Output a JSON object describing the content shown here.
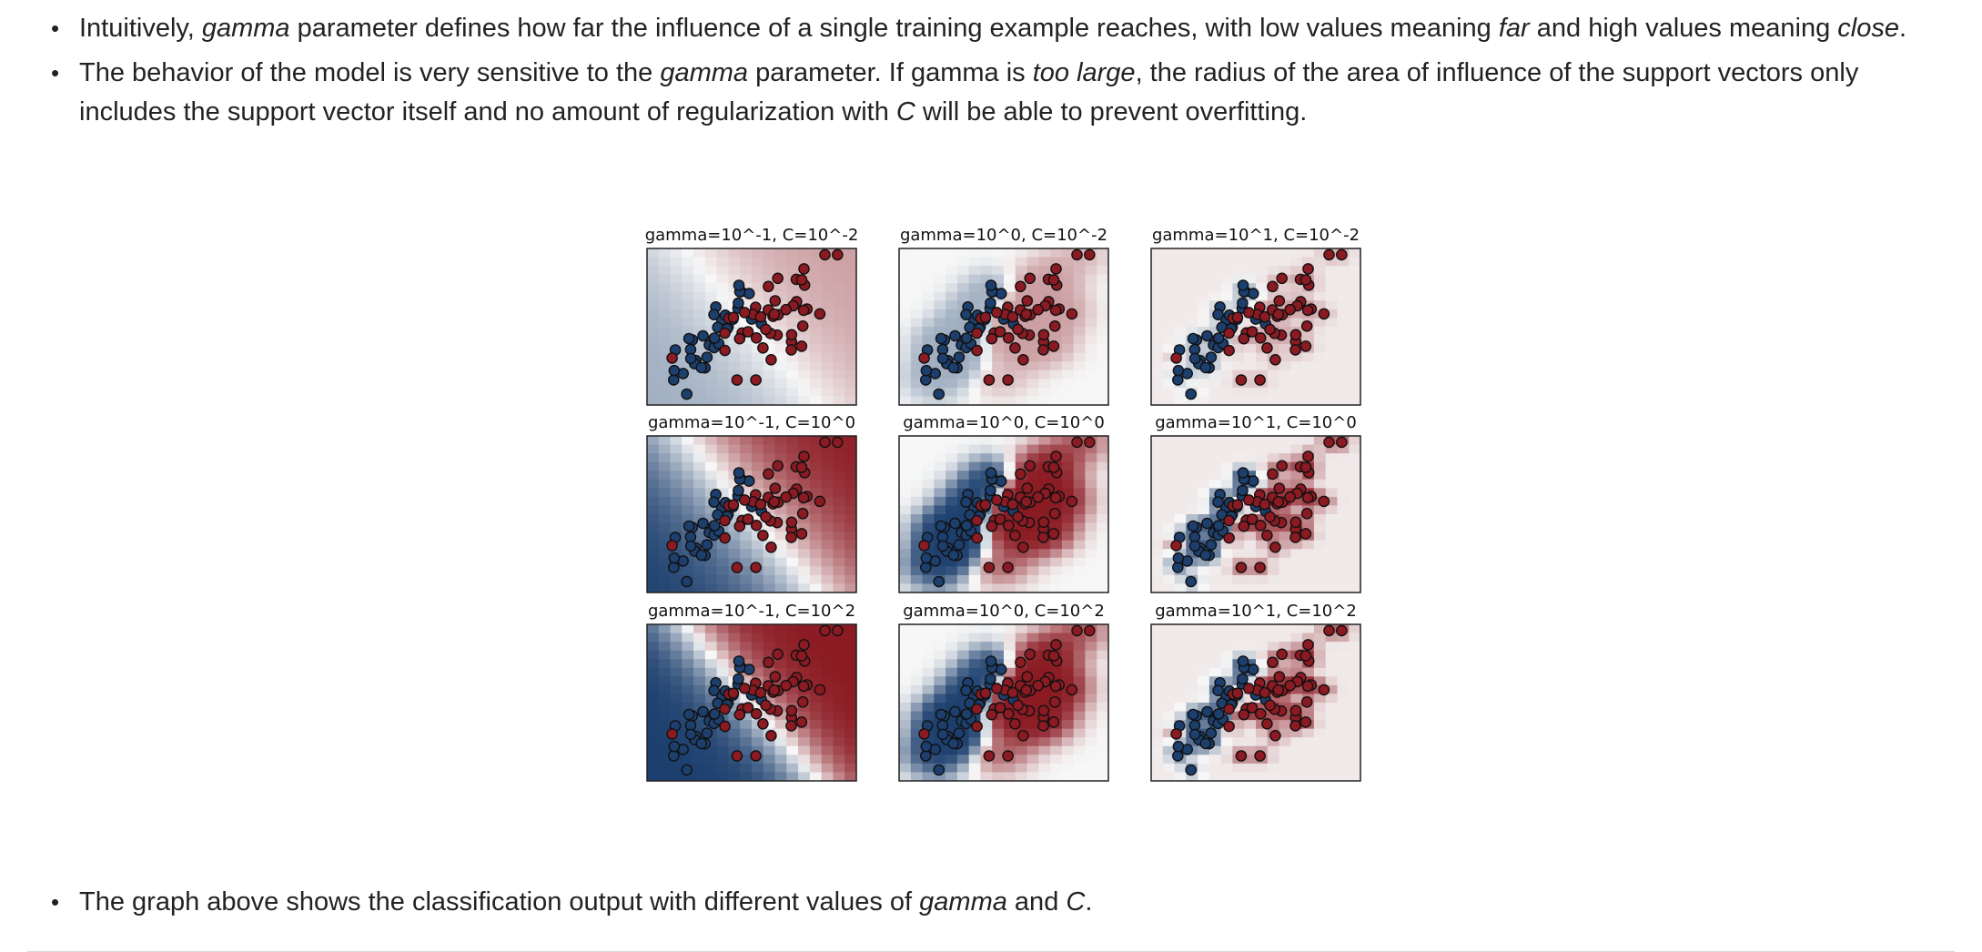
{
  "bullets_top": [
    {
      "segments": [
        {
          "text": "Intuitively, ",
          "italic": false
        },
        {
          "text": "gamma",
          "italic": true
        },
        {
          "text": " parameter defines how far the influence of a single training example reaches, with low values meaning ",
          "italic": false
        },
        {
          "text": "far",
          "italic": true
        },
        {
          "text": " and high values meaning ",
          "italic": false
        },
        {
          "text": "close",
          "italic": true
        },
        {
          "text": ".",
          "italic": false
        }
      ]
    },
    {
      "segments": [
        {
          "text": "The behavior of the model is very sensitive to the ",
          "italic": false
        },
        {
          "text": "gamma",
          "italic": true
        },
        {
          "text": " parameter. If gamma is ",
          "italic": false
        },
        {
          "text": "too large",
          "italic": true
        },
        {
          "text": ", the radius of the area of influence of the support vectors only includes the support vector itself and no amount of regularization with ",
          "italic": false
        },
        {
          "text": "C",
          "italic": true
        },
        {
          "text": " will be able to prevent overfitting.",
          "italic": false
        }
      ]
    }
  ],
  "bullets_bottom": [
    {
      "segments": [
        {
          "text": "The graph above shows the classification output with different values of ",
          "italic": false
        },
        {
          "text": "gamma",
          "italic": true
        },
        {
          "text": " and ",
          "italic": false
        },
        {
          "text": "C",
          "italic": true
        },
        {
          "text": ".",
          "italic": false
        }
      ]
    }
  ],
  "figure": {
    "colors": {
      "red": "#8b1a22",
      "blue": "#1c3f6e",
      "mid": "#f7f7f7",
      "border": "#222222"
    },
    "panels": [
      {
        "title": "gamma=10^-1, C=10^-2",
        "gamma": 0.1,
        "C": 0.01
      },
      {
        "title": "gamma=10^0, C=10^-2",
        "gamma": 1,
        "C": 0.01
      },
      {
        "title": "gamma=10^1, C=10^-2",
        "gamma": 10,
        "C": 0.01
      },
      {
        "title": "gamma=10^-1, C=10^0",
        "gamma": 0.1,
        "C": 1
      },
      {
        "title": "gamma=10^0, C=10^0",
        "gamma": 1,
        "C": 1
      },
      {
        "title": "gamma=10^1, C=10^0",
        "gamma": 10,
        "C": 1
      },
      {
        "title": "gamma=10^-1, C=10^2",
        "gamma": 0.1,
        "C": 100
      },
      {
        "title": "gamma=10^0, C=10^2",
        "gamma": 1,
        "C": 100
      },
      {
        "title": "gamma=10^1, C=10^2",
        "gamma": 10,
        "C": 100
      }
    ]
  }
}
